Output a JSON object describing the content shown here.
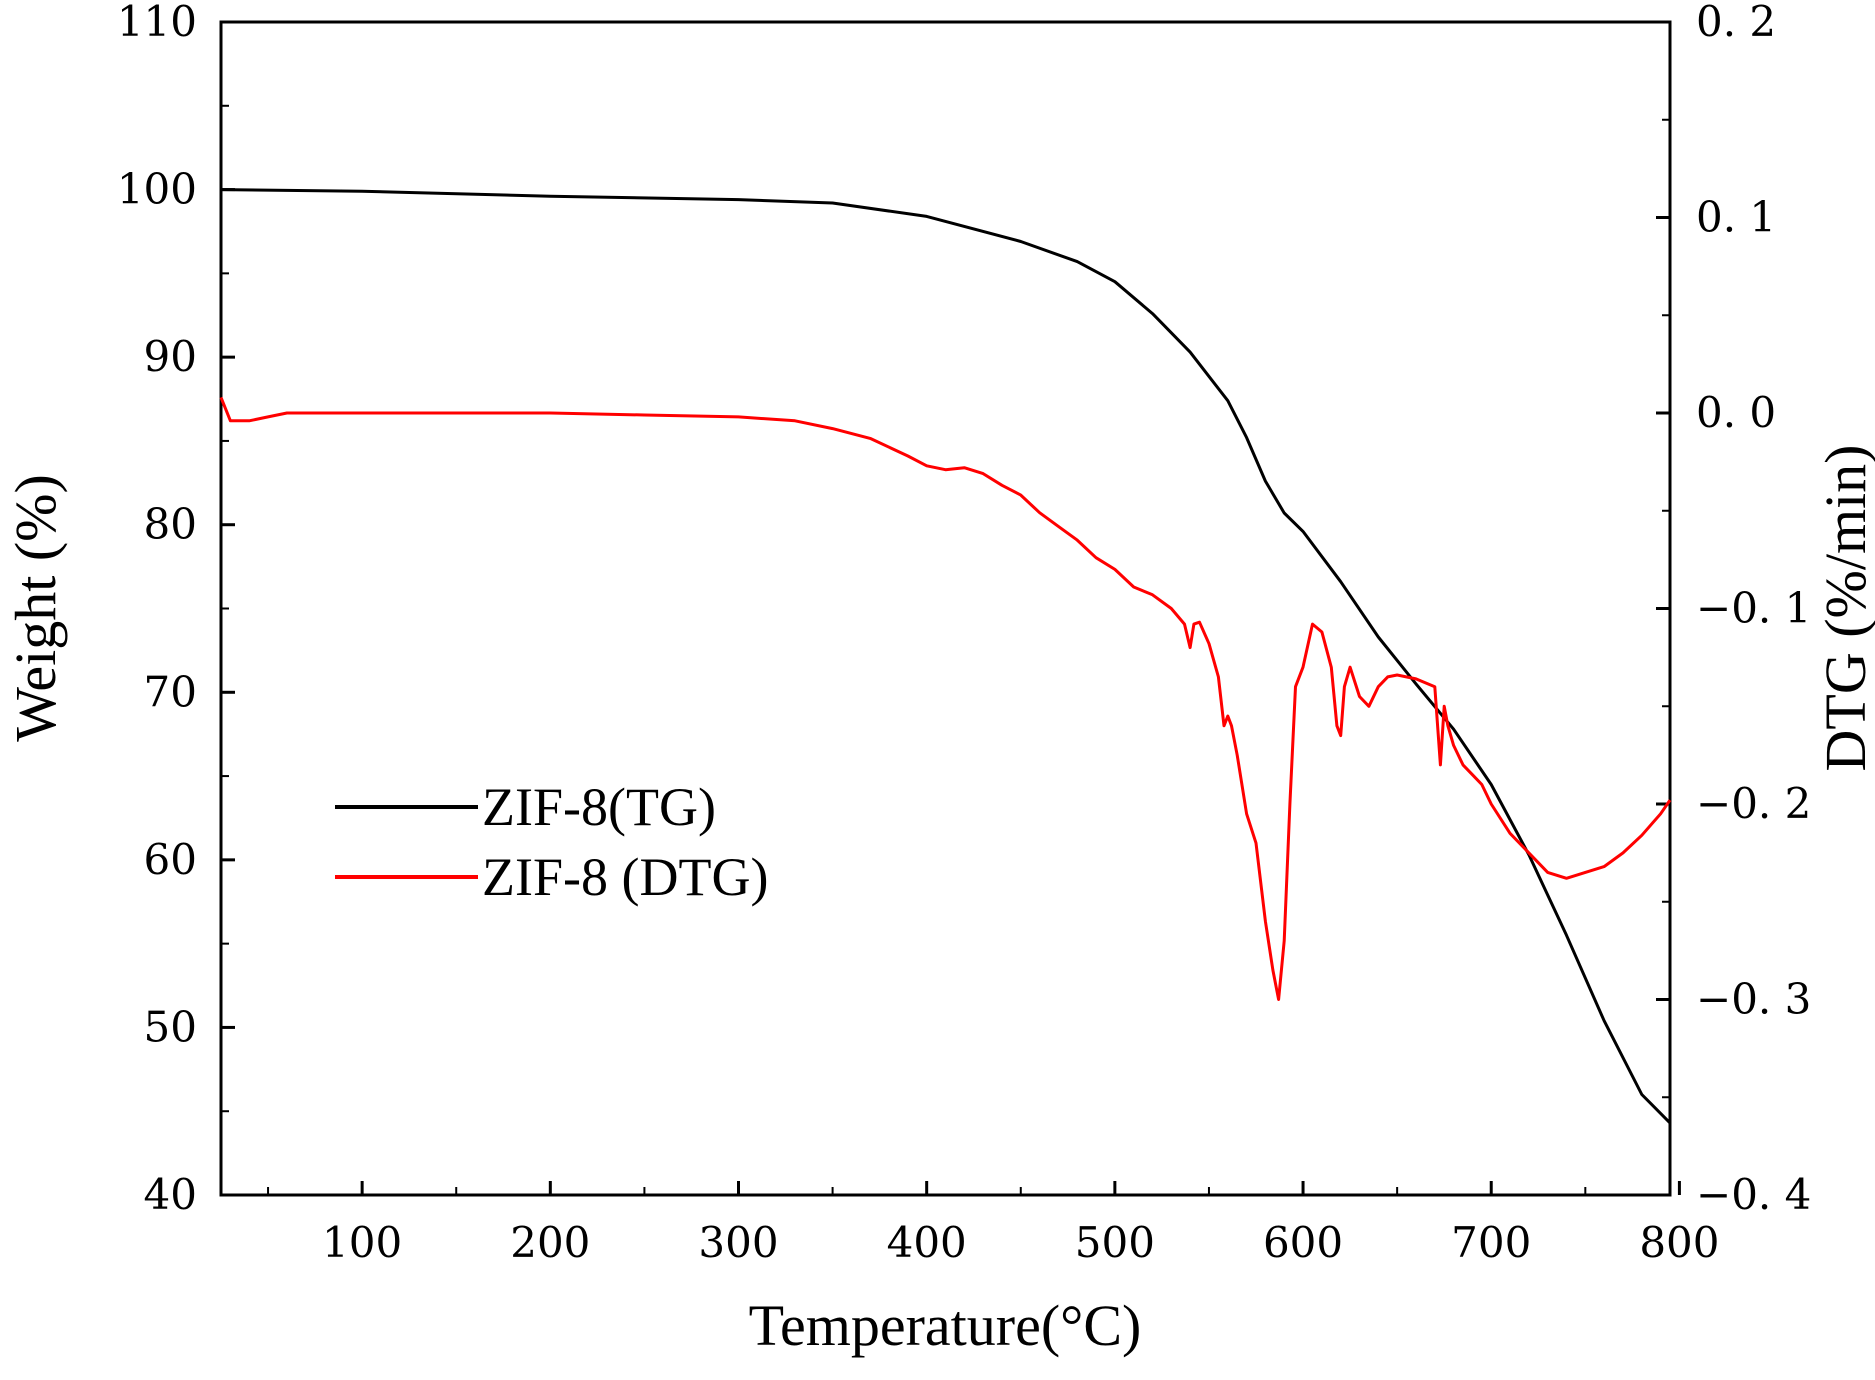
{
  "chart_data": {
    "type": "line",
    "xlabel": "Temperature(°C)",
    "ylabel_left": "Weight (%)",
    "ylabel_right": "DTG (%/min)",
    "xlim": [
      25,
      795
    ],
    "ylim_left": [
      40,
      110
    ],
    "ylim_right": [
      -0.4,
      0.2
    ],
    "x_ticks": [
      100,
      200,
      300,
      400,
      500,
      600,
      700,
      800
    ],
    "x_tick_labels": [
      "100",
      "200",
      "300",
      "400",
      "500",
      "600",
      "700",
      "800"
    ],
    "y_left_ticks": [
      40,
      50,
      60,
      70,
      80,
      90,
      100,
      110
    ],
    "y_left_tick_labels": [
      "40",
      "50",
      "60",
      "70",
      "80",
      "90",
      "100",
      "110"
    ],
    "y_right_ticks": [
      -0.4,
      -0.3,
      -0.2,
      -0.1,
      0.0,
      0.1,
      0.2
    ],
    "y_right_tick_labels": [
      "−0. 4",
      "−0. 3",
      "−0. 2",
      "−0. 1",
      "0. 0",
      "0. 1",
      "0. 2"
    ],
    "legend_position": "center-left",
    "colors": {
      "tg": "#000000",
      "dtg": "#ff0000"
    },
    "series": [
      {
        "name": "ZIF-8(TG)",
        "axis": "left",
        "color": "#000000",
        "x": [
          25,
          100,
          200,
          300,
          350,
          400,
          450,
          480,
          500,
          520,
          540,
          560,
          570,
          580,
          590,
          600,
          620,
          640,
          660,
          680,
          700,
          720,
          740,
          760,
          780,
          795
        ],
        "y": [
          100,
          99.9,
          99.6,
          99.4,
          99.2,
          98.4,
          96.9,
          95.7,
          94.5,
          92.6,
          90.3,
          87.4,
          85.2,
          82.6,
          80.7,
          79.6,
          76.6,
          73.3,
          70.5,
          67.8,
          64.5,
          60.3,
          55.5,
          50.4,
          46.0,
          44.3
        ]
      },
      {
        "name": "ZIF-8 (DTG)",
        "axis": "right",
        "color": "#ff0000",
        "x": [
          25,
          30,
          40,
          50,
          60,
          100,
          150,
          200,
          250,
          300,
          330,
          350,
          370,
          390,
          400,
          410,
          420,
          430,
          440,
          450,
          460,
          470,
          480,
          490,
          500,
          510,
          520,
          530,
          537,
          540,
          542,
          545,
          550,
          555,
          558,
          560,
          562,
          565,
          570,
          575,
          580,
          584,
          587,
          590,
          593,
          596,
          600,
          605,
          610,
          615,
          618,
          620,
          622,
          625,
          630,
          635,
          640,
          645,
          650,
          660,
          670,
          673,
          675,
          677,
          680,
          685,
          690,
          695,
          700,
          710,
          720,
          730,
          740,
          750,
          760,
          770,
          780,
          790,
          795
        ],
        "y": [
          0.008,
          -0.004,
          -0.004,
          -0.002,
          0.0,
          0.0,
          0.0,
          0.0,
          -0.001,
          -0.002,
          -0.004,
          -0.008,
          -0.013,
          -0.022,
          -0.027,
          -0.029,
          -0.028,
          -0.031,
          -0.037,
          -0.042,
          -0.051,
          -0.058,
          -0.065,
          -0.074,
          -0.08,
          -0.089,
          -0.093,
          -0.1,
          -0.108,
          -0.12,
          -0.108,
          -0.107,
          -0.118,
          -0.135,
          -0.16,
          -0.155,
          -0.16,
          -0.175,
          -0.205,
          -0.22,
          -0.26,
          -0.285,
          -0.3,
          -0.27,
          -0.2,
          -0.14,
          -0.13,
          -0.108,
          -0.112,
          -0.13,
          -0.16,
          -0.165,
          -0.14,
          -0.13,
          -0.145,
          -0.15,
          -0.14,
          -0.135,
          -0.134,
          -0.136,
          -0.14,
          -0.18,
          -0.15,
          -0.16,
          -0.17,
          -0.18,
          -0.185,
          -0.19,
          -0.2,
          -0.215,
          -0.225,
          -0.235,
          -0.238,
          -0.235,
          -0.232,
          -0.225,
          -0.216,
          -0.205,
          -0.198
        ]
      }
    ]
  }
}
